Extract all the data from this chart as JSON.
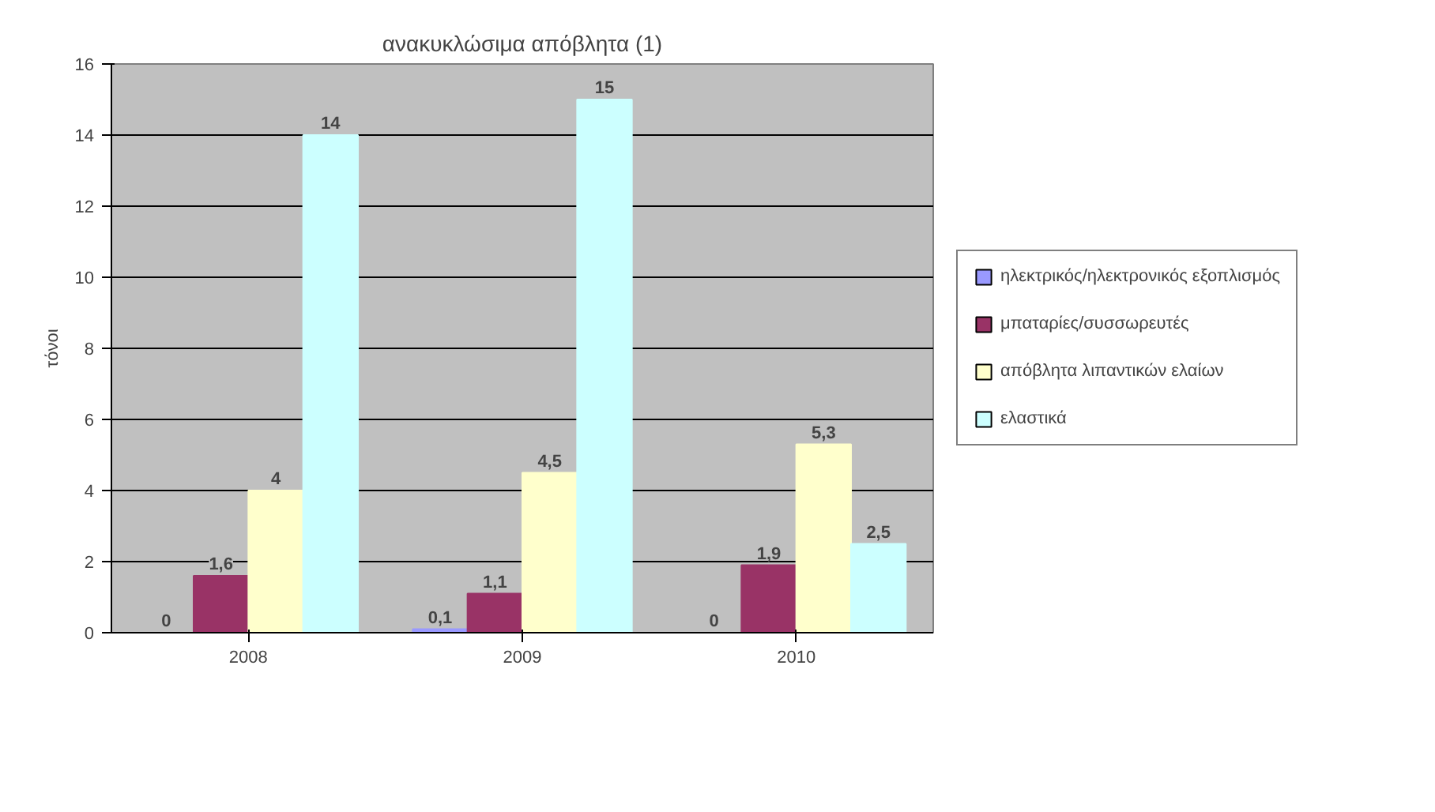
{
  "chart_data": {
    "type": "bar",
    "title": "ανακυκλώσιμα απόβλητα (1)",
    "ylabel": "τόνοι",
    "categories": [
      "2008",
      "2009",
      "2010"
    ],
    "series": [
      {
        "name": "ηλεκτρικός/ηλεκτρονικός εξοπλισμός",
        "color": "#9999ff",
        "values": [
          0,
          0.1,
          0
        ],
        "value_labels": [
          "0",
          "0,1",
          "0"
        ]
      },
      {
        "name": "μπαταρίες/συσσωρευτές",
        "color": "#993366",
        "values": [
          1.6,
          1.1,
          1.9
        ],
        "value_labels": [
          "1,6",
          "1,1",
          "1,9"
        ]
      },
      {
        "name": "απόβλητα λιπαντικών ελαίων",
        "color": "#ffffcc",
        "values": [
          4,
          4.5,
          5.3
        ],
        "value_labels": [
          "4",
          "4,5",
          "5,3"
        ]
      },
      {
        "name": "ελαστικά",
        "color": "#ccffff",
        "values": [
          14,
          15,
          2.5
        ],
        "value_labels": [
          "14",
          "15",
          "2,5"
        ]
      }
    ],
    "ylim": [
      0,
      16
    ],
    "yticks": [
      0,
      2,
      4,
      6,
      8,
      10,
      12,
      14,
      16
    ],
    "grid": "y",
    "legend": "right"
  }
}
